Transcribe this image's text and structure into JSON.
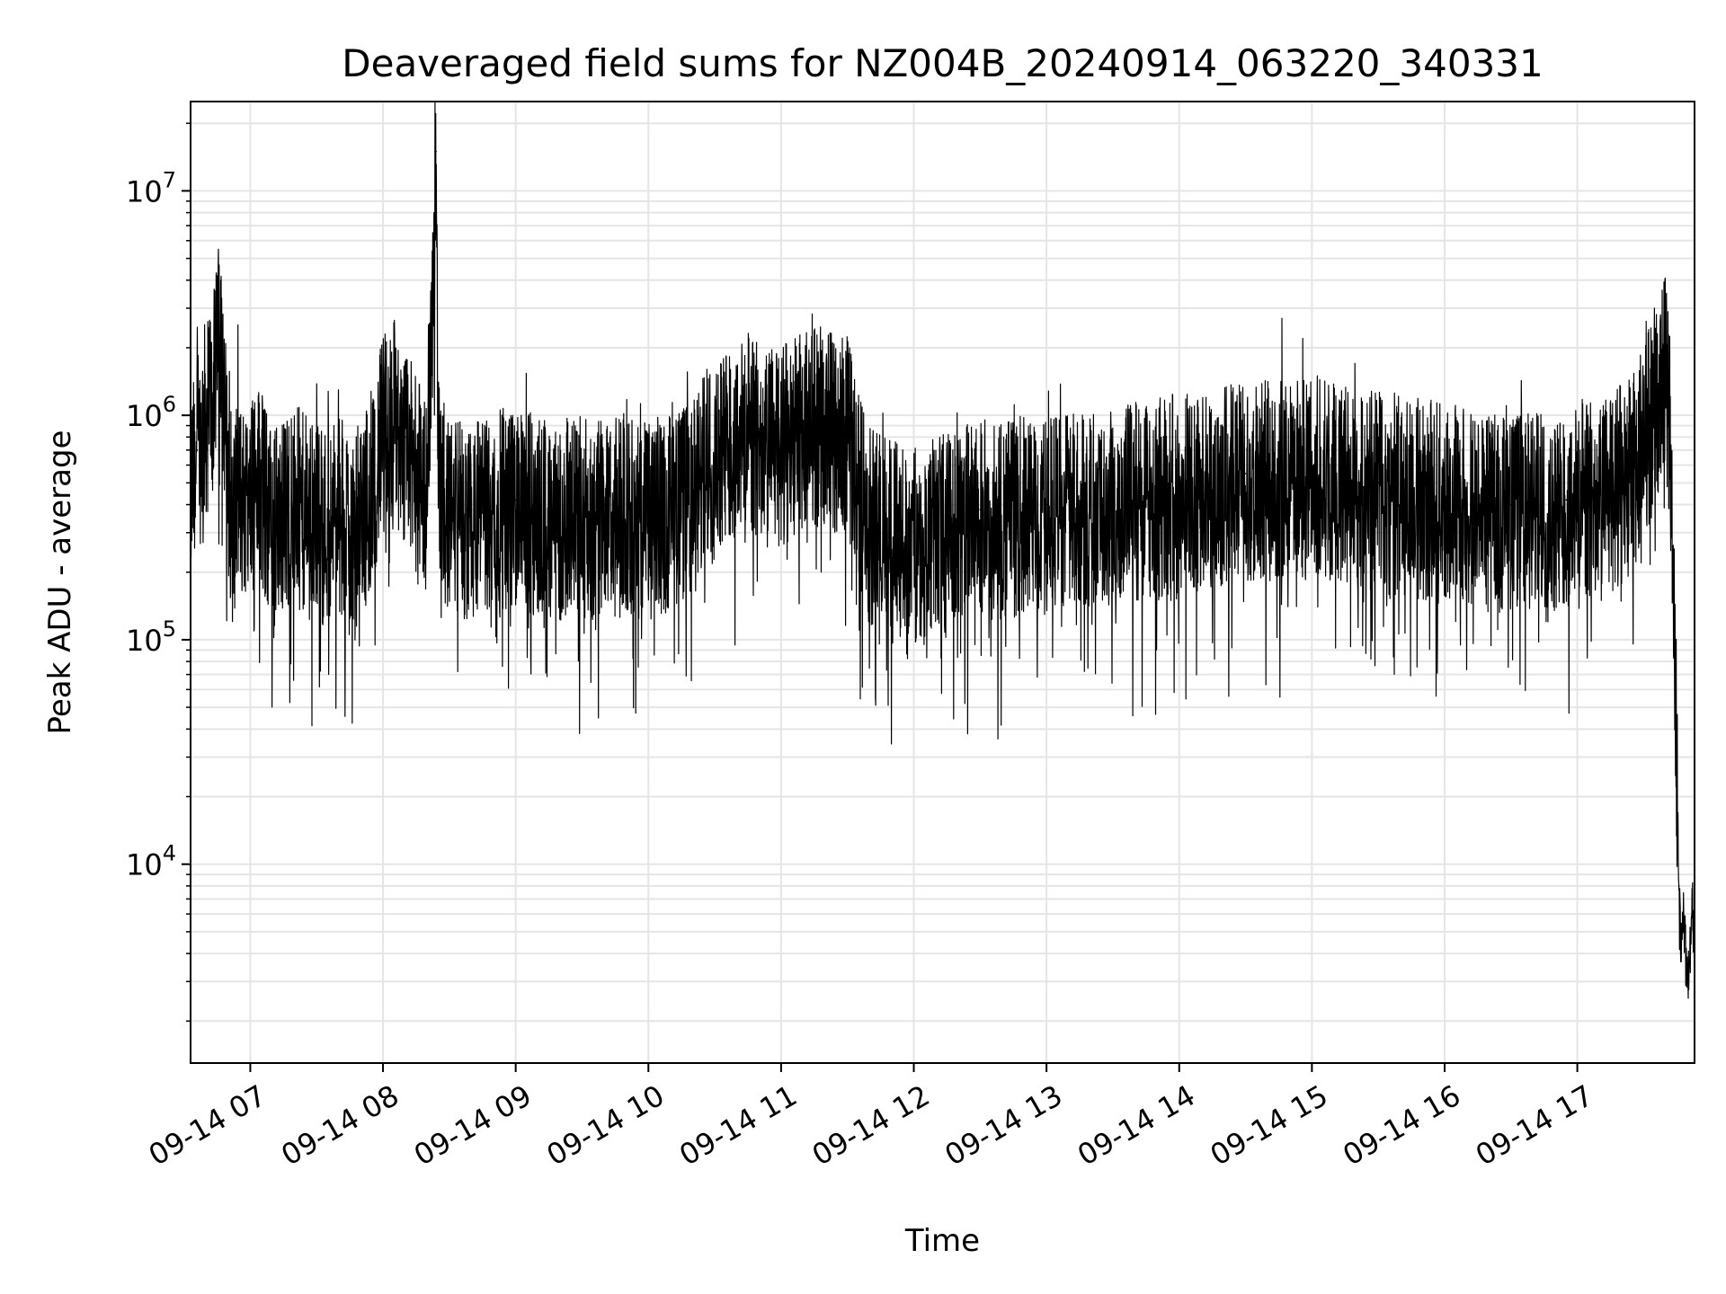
{
  "chart_data": {
    "type": "line",
    "title": "Deaveraged field sums for NZ004B_20240914_063220_340331",
    "xlabel": "Time",
    "ylabel": "Peak ADU - average",
    "x_axis_kind": "time",
    "xlim": [
      "2024-09-14 06:33",
      "2024-09-14 17:53"
    ],
    "ylim": [
      1300,
      25000000
    ],
    "y_scale": "log",
    "grid": true,
    "x_ticks": [
      {
        "value": "2024-09-14 07:00",
        "label": "09-14 07"
      },
      {
        "value": "2024-09-14 08:00",
        "label": "09-14 08"
      },
      {
        "value": "2024-09-14 09:00",
        "label": "09-14 09"
      },
      {
        "value": "2024-09-14 10:00",
        "label": "09-14 10"
      },
      {
        "value": "2024-09-14 11:00",
        "label": "09-14 11"
      },
      {
        "value": "2024-09-14 12:00",
        "label": "09-14 12"
      },
      {
        "value": "2024-09-14 13:00",
        "label": "09-14 13"
      },
      {
        "value": "2024-09-14 14:00",
        "label": "09-14 14"
      },
      {
        "value": "2024-09-14 15:00",
        "label": "09-14 15"
      },
      {
        "value": "2024-09-14 16:00",
        "label": "09-14 16"
      },
      {
        "value": "2024-09-14 17:00",
        "label": "09-14 17"
      }
    ],
    "y_ticks": [
      {
        "value": 10000,
        "base": "10",
        "exp": "4"
      },
      {
        "value": 100000,
        "base": "10",
        "exp": "5"
      },
      {
        "value": 1000000,
        "base": "10",
        "exp": "6"
      },
      {
        "value": 10000000,
        "base": "10",
        "exp": "7"
      }
    ],
    "line_color": "#000000",
    "grid_color": "#e5e5e5",
    "series": [
      {
        "x": [
          "2024-09-14 06:33",
          "2024-09-14 06:36",
          "2024-09-14 06:39",
          "2024-09-14 06:42",
          "2024-09-14 06:44",
          "2024-09-14 06:46",
          "2024-09-14 06:47",
          "2024-09-14 06:48",
          "2024-09-14 06:50",
          "2024-09-14 06:52",
          "2024-09-14 06:54",
          "2024-09-14 06:57",
          "2024-09-14 07:00",
          "2024-09-14 07:05",
          "2024-09-14 07:10",
          "2024-09-14 07:15",
          "2024-09-14 07:20",
          "2024-09-14 07:30",
          "2024-09-14 07:40",
          "2024-09-14 07:50",
          "2024-09-14 08:00",
          "2024-09-14 08:05",
          "2024-09-14 08:10",
          "2024-09-14 08:15",
          "2024-09-14 08:20",
          "2024-09-14 08:24",
          "2024-09-14 08:25",
          "2024-09-14 08:26",
          "2024-09-14 08:30",
          "2024-09-14 08:40",
          "2024-09-14 08:50",
          "2024-09-14 09:00",
          "2024-09-14 09:20",
          "2024-09-14 09:40",
          "2024-09-14 10:00",
          "2024-09-14 10:20",
          "2024-09-14 10:30",
          "2024-09-14 10:45",
          "2024-09-14 11:00",
          "2024-09-14 11:10",
          "2024-09-14 11:15",
          "2024-09-14 11:30",
          "2024-09-14 11:40",
          "2024-09-14 12:00",
          "2024-09-14 12:30",
          "2024-09-14 13:00",
          "2024-09-14 13:30",
          "2024-09-14 14:00",
          "2024-09-14 14:30",
          "2024-09-14 15:00",
          "2024-09-14 15:30",
          "2024-09-14 16:00",
          "2024-09-14 16:30",
          "2024-09-14 16:55",
          "2024-09-14 17:00",
          "2024-09-14 17:15",
          "2024-09-14 17:25",
          "2024-09-14 17:35",
          "2024-09-14 17:40",
          "2024-09-14 17:42",
          "2024-09-14 17:44",
          "2024-09-14 17:45",
          "2024-09-14 17:46",
          "2024-09-14 17:47",
          "2024-09-14 17:48",
          "2024-09-14 17:50",
          "2024-09-14 17:52",
          "2024-09-14 17:53"
        ],
        "y": [
          500000,
          700000,
          1000000,
          1300000,
          1500000,
          2500000,
          3200000,
          1200000,
          600000,
          350000,
          500000,
          450000,
          600000,
          500000,
          350000,
          400000,
          450000,
          350000,
          400000,
          350000,
          900000,
          1100000,
          800000,
          600000,
          500000,
          15000000,
          700000,
          450000,
          400000,
          380000,
          400000,
          420000,
          380000,
          400000,
          380000,
          450000,
          800000,
          900000,
          800000,
          950000,
          1000000,
          900000,
          350000,
          300000,
          380000,
          400000,
          450000,
          500000,
          550000,
          600000,
          500000,
          450000,
          400000,
          420000,
          450000,
          500000,
          600000,
          1200000,
          1700000,
          1000000,
          100000,
          30000,
          8000,
          4000,
          6000,
          3000,
          7000,
          5000
        ]
      }
    ]
  }
}
